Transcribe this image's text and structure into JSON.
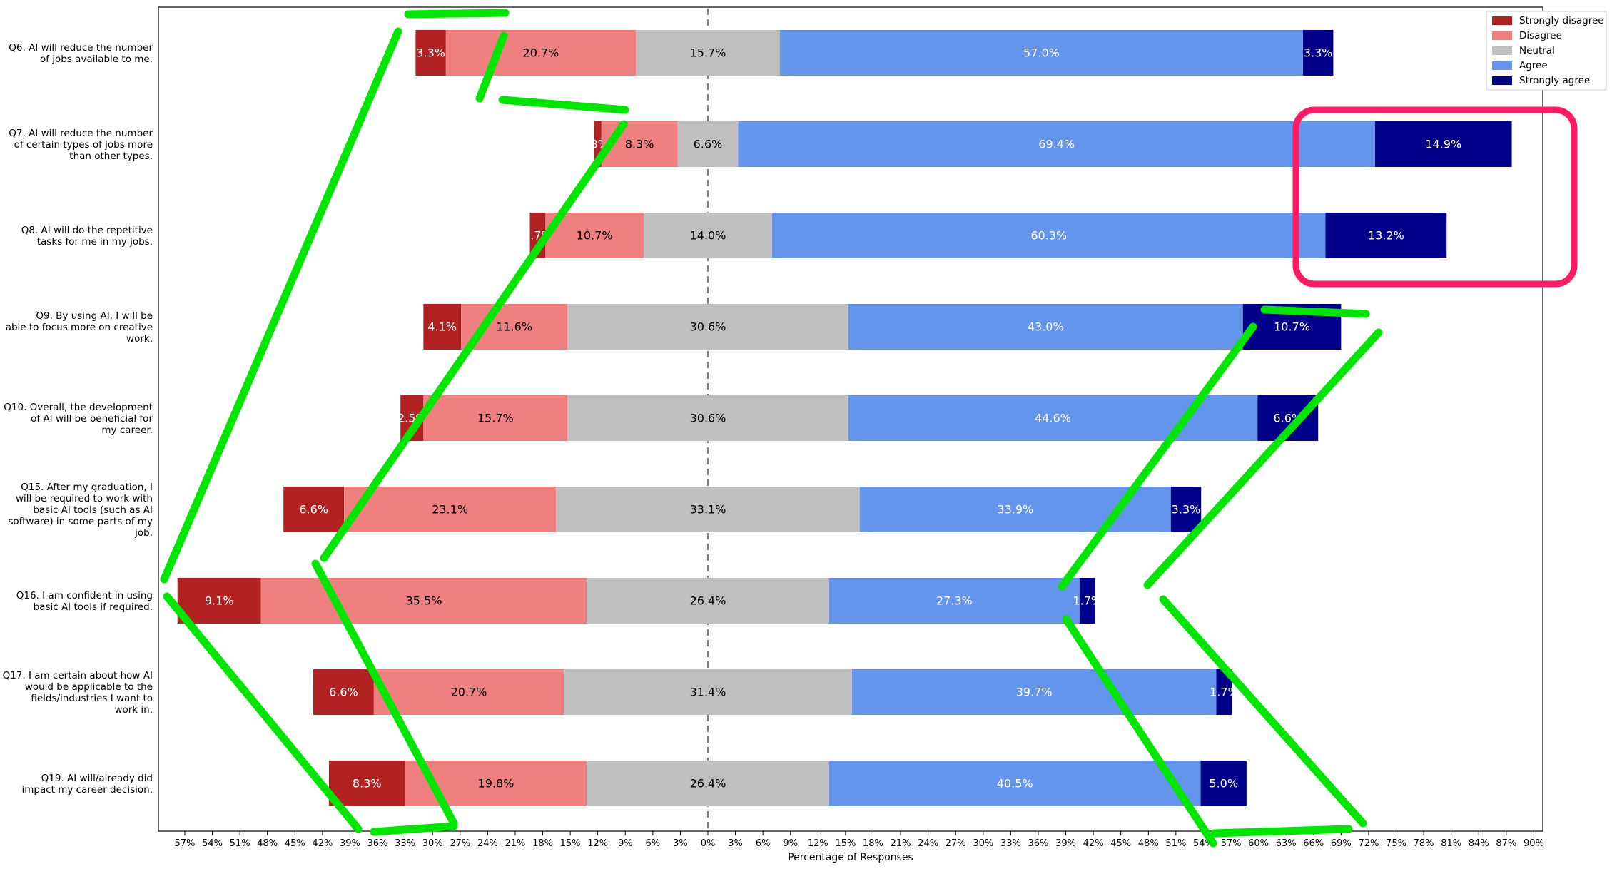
{
  "chart_data": {
    "type": "bar",
    "orientation": "horizontal-diverging-stacked",
    "xlabel": "Percentage of Responses",
    "x_ticks": [
      "57%",
      "54%",
      "51%",
      "48%",
      "45%",
      "42%",
      "39%",
      "36%",
      "33%",
      "30%",
      "27%",
      "24%",
      "21%",
      "18%",
      "15%",
      "12%",
      "9%",
      "6%",
      "3%",
      "0%",
      "3%",
      "6%",
      "9%",
      "12%",
      "15%",
      "18%",
      "21%",
      "24%",
      "27%",
      "30%",
      "33%",
      "36%",
      "39%",
      "42%",
      "45%",
      "48%",
      "51%",
      "54%",
      "57%",
      "60%",
      "63%",
      "66%",
      "69%",
      "72%",
      "75%",
      "78%",
      "81%",
      "84%",
      "87%",
      "90%"
    ],
    "xlim": [
      -58.5,
      91
    ],
    "grid": false,
    "legend_position": "top-right",
    "series_names": [
      "Strongly disagree",
      "Disagree",
      "Neutral",
      "Agree",
      "Strongly agree"
    ],
    "series_colors": [
      "#b22222",
      "#f08080",
      "#c0c0c0",
      "#6495ed",
      "#00008b"
    ],
    "categories": [
      {
        "label_lines": [
          "Q6. AI will reduce the number",
          "of jobs available to me."
        ],
        "values": [
          3.3,
          20.7,
          15.7,
          57.0,
          3.3
        ],
        "labels": [
          "3.3%",
          "20.7%",
          "15.7%",
          "57.0%",
          "3.3%"
        ]
      },
      {
        "label_lines": [
          "Q7. AI will reduce the number",
          "of certain types of jobs more",
          "than other types."
        ],
        "values": [
          0.8,
          8.3,
          6.6,
          69.4,
          14.9
        ],
        "labels": [
          ".8%",
          "8.3%",
          "6.6%",
          "69.4%",
          "14.9%"
        ]
      },
      {
        "label_lines": [
          "Q8. AI will do the repetitive",
          "tasks for me in my jobs."
        ],
        "values": [
          1.7,
          10.7,
          14.0,
          60.3,
          13.2
        ],
        "labels": [
          "1.7%",
          "10.7%",
          "14.0%",
          "60.3%",
          "13.2%"
        ]
      },
      {
        "label_lines": [
          "Q9. By using AI, I will be",
          "able to focus more on creative",
          "work."
        ],
        "values": [
          4.1,
          11.6,
          30.6,
          43.0,
          10.7
        ],
        "labels": [
          "4.1%",
          "11.6%",
          "30.6%",
          "43.0%",
          "10.7%"
        ]
      },
      {
        "label_lines": [
          "Q10. Overall, the development",
          "of AI will be beneficial for",
          "my career."
        ],
        "values": [
          2.5,
          15.7,
          30.6,
          44.6,
          6.6
        ],
        "labels": [
          "2.5%",
          "15.7%",
          "30.6%",
          "44.6%",
          "6.6%"
        ]
      },
      {
        "label_lines": [
          "Q15. After my graduation, I",
          "will be required to work with",
          "basic AI tools (such as AI",
          "software)  in some parts of my",
          "job."
        ],
        "values": [
          6.6,
          23.1,
          33.1,
          33.9,
          3.3
        ],
        "labels": [
          "6.6%",
          "23.1%",
          "33.1%",
          "33.9%",
          "3.3%"
        ]
      },
      {
        "label_lines": [
          "Q16. I am confident in using",
          "basic AI tools if required."
        ],
        "values": [
          9.1,
          35.5,
          26.4,
          27.3,
          1.7
        ],
        "labels": [
          "9.1%",
          "35.5%",
          "26.4%",
          "27.3%",
          "1.7%"
        ]
      },
      {
        "label_lines": [
          "Q17. I am certain about how AI",
          "would be applicable to the",
          "fields/industries I want to",
          "work in."
        ],
        "values": [
          6.6,
          20.7,
          31.4,
          39.7,
          1.7
        ],
        "labels": [
          "6.6%",
          "20.7%",
          "31.4%",
          "39.7%",
          "1.7%"
        ]
      },
      {
        "label_lines": [
          "Q19. AI will/already did",
          "impact my career decision."
        ],
        "values": [
          8.3,
          19.8,
          26.4,
          40.5,
          5.0
        ],
        "labels": [
          "8.3%",
          "19.8%",
          "26.4%",
          "40.5%",
          "5.0%"
        ]
      }
    ],
    "annotations": [
      {
        "type": "hand-drawn-lines",
        "color": "#00e600"
      },
      {
        "type": "highlight-box",
        "color": "#ff1a66",
        "covers": "Strongly agree, Q7 and Q8"
      }
    ]
  }
}
